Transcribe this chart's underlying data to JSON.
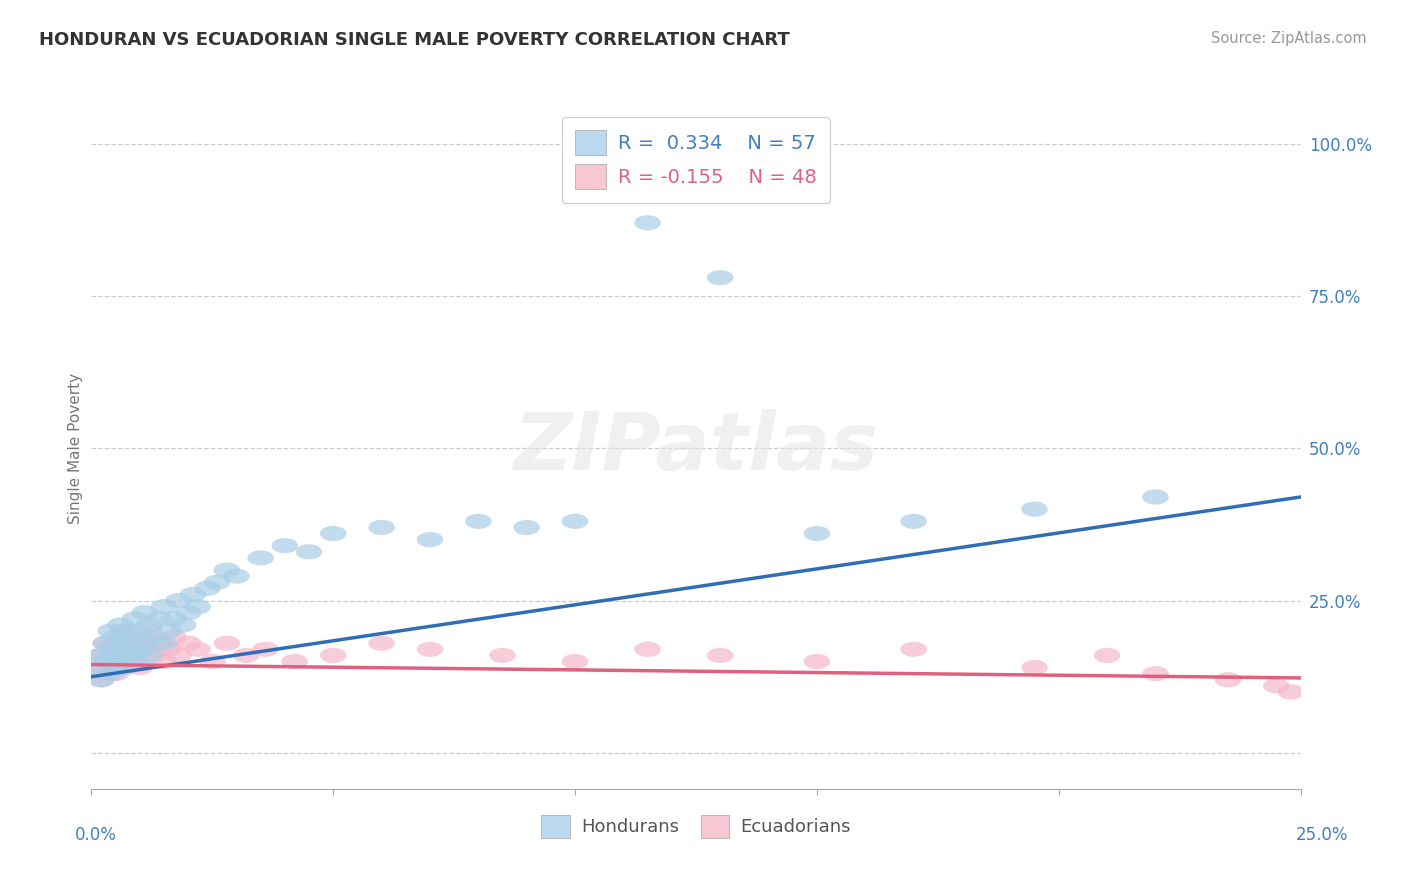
{
  "title": "HONDURAN VS ECUADORIAN SINGLE MALE POVERTY CORRELATION CHART",
  "source": "Source: ZipAtlas.com",
  "ylabel": "Single Male Poverty",
  "right_yticklabels": [
    "",
    "25.0%",
    "50.0%",
    "75.0%",
    "100.0%"
  ],
  "xlim": [
    0.0,
    0.25
  ],
  "ylim": [
    -0.06,
    1.06
  ],
  "R_honduran": 0.334,
  "N_honduran": 57,
  "R_ecuadorian": -0.155,
  "N_ecuadorian": 48,
  "blue_scatter_color": "#A8CEE8",
  "pink_scatter_color": "#F5B8CA",
  "blue_line_color": "#2F6DB5",
  "pink_line_color": "#E06080",
  "blue_legend_color": "#BBDAEF",
  "pink_legend_color": "#F9C8D5",
  "legend_text_color": "#4080C0",
  "watermark_color": "#E5E5E5",
  "background_color": "#FFFFFF",
  "grid_color": "#C8C8C8",
  "axis_color": "#AAAAAA",
  "title_color": "#333333",
  "source_color": "#999999",
  "ylabel_color": "#777777",
  "honduran_x": [
    0.001,
    0.002,
    0.002,
    0.003,
    0.003,
    0.004,
    0.004,
    0.004,
    0.005,
    0.005,
    0.005,
    0.006,
    0.006,
    0.006,
    0.007,
    0.007,
    0.007,
    0.008,
    0.008,
    0.009,
    0.009,
    0.01,
    0.01,
    0.011,
    0.011,
    0.012,
    0.012,
    0.013,
    0.014,
    0.015,
    0.015,
    0.016,
    0.017,
    0.018,
    0.019,
    0.02,
    0.021,
    0.022,
    0.024,
    0.026,
    0.028,
    0.03,
    0.035,
    0.04,
    0.045,
    0.05,
    0.06,
    0.07,
    0.08,
    0.09,
    0.1,
    0.115,
    0.13,
    0.15,
    0.17,
    0.195,
    0.22
  ],
  "honduran_y": [
    0.14,
    0.16,
    0.12,
    0.18,
    0.15,
    0.13,
    0.17,
    0.2,
    0.14,
    0.16,
    0.19,
    0.15,
    0.18,
    0.21,
    0.14,
    0.17,
    0.2,
    0.16,
    0.19,
    0.15,
    0.22,
    0.17,
    0.2,
    0.18,
    0.23,
    0.16,
    0.21,
    0.19,
    0.22,
    0.18,
    0.24,
    0.2,
    0.22,
    0.25,
    0.21,
    0.23,
    0.26,
    0.24,
    0.27,
    0.28,
    0.3,
    0.29,
    0.32,
    0.34,
    0.33,
    0.36,
    0.37,
    0.35,
    0.38,
    0.37,
    0.38,
    0.87,
    0.78,
    0.36,
    0.38,
    0.4,
    0.42
  ],
  "ecuadorian_x": [
    0.001,
    0.002,
    0.002,
    0.003,
    0.003,
    0.004,
    0.004,
    0.005,
    0.005,
    0.006,
    0.006,
    0.007,
    0.007,
    0.008,
    0.008,
    0.009,
    0.01,
    0.01,
    0.011,
    0.012,
    0.013,
    0.014,
    0.015,
    0.016,
    0.017,
    0.018,
    0.02,
    0.022,
    0.025,
    0.028,
    0.032,
    0.036,
    0.042,
    0.05,
    0.06,
    0.07,
    0.085,
    0.1,
    0.115,
    0.13,
    0.15,
    0.17,
    0.195,
    0.21,
    0.22,
    0.235,
    0.245,
    0.248
  ],
  "ecuadorian_y": [
    0.13,
    0.16,
    0.12,
    0.18,
    0.14,
    0.15,
    0.17,
    0.13,
    0.16,
    0.19,
    0.14,
    0.17,
    0.2,
    0.15,
    0.18,
    0.16,
    0.19,
    0.14,
    0.17,
    0.2,
    0.16,
    0.18,
    0.15,
    0.17,
    0.19,
    0.16,
    0.18,
    0.17,
    0.15,
    0.18,
    0.16,
    0.17,
    0.15,
    0.16,
    0.18,
    0.17,
    0.16,
    0.15,
    0.17,
    0.16,
    0.15,
    0.17,
    0.14,
    0.16,
    0.13,
    0.12,
    0.11,
    0.1
  ],
  "ytick_positions": [
    0.0,
    0.25,
    0.5,
    0.75,
    1.0
  ]
}
